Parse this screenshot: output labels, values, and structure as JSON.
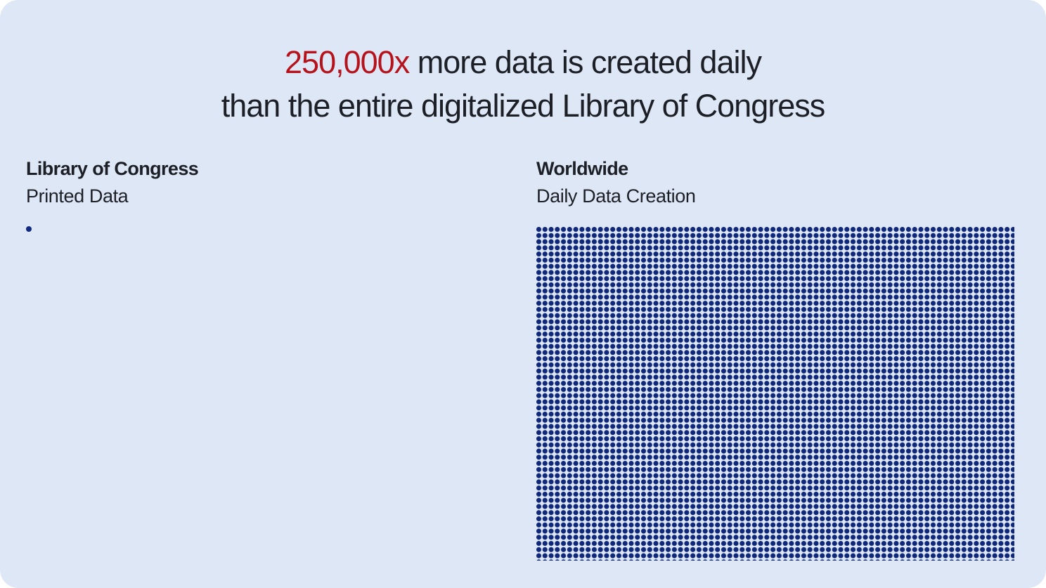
{
  "headline": {
    "accent": "250,000x",
    "line1_rest": " more data is created daily",
    "line2": "than the entire digitalized Library of Congress"
  },
  "left_panel": {
    "title": "Library of Congress",
    "subtitle": "Printed Data"
  },
  "right_panel": {
    "title": "Worldwide",
    "subtitle": "Daily Data Creation"
  },
  "colors": {
    "background": "#dee7f6",
    "accent": "#b5121b",
    "dot": "#10287a",
    "text": "#1c1f26"
  }
}
